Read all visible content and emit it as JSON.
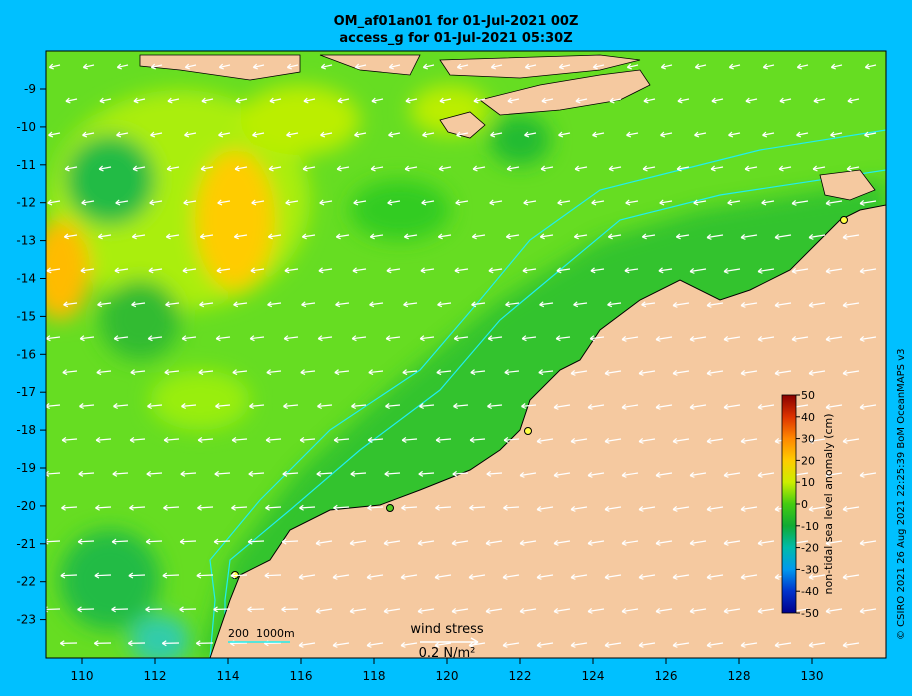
{
  "title_line1": "OM_af01an01 for 01-Jul-2021 00Z",
  "title_line2": "access_g for 01-Jul-2021 05:30Z",
  "x_ticks": [
    "110",
    "112",
    "114",
    "116",
    "118",
    "120",
    "122",
    "124",
    "126",
    "128",
    "130"
  ],
  "y_ticks": [
    "-9",
    "-10",
    "-11",
    "-12",
    "-13",
    "-14",
    "-15",
    "-16",
    "-17",
    "-18",
    "-19",
    "-20",
    "-21",
    "-22",
    "-23"
  ],
  "colorbar": {
    "label": "non-tidal sea level anomaly (cm)",
    "ticks": [
      "50",
      "40",
      "30",
      "20",
      "10",
      "0",
      "-10",
      "-20",
      "-30",
      "-40",
      "-50"
    ]
  },
  "depth_legend": {
    "label1": "200",
    "label2": "1000m"
  },
  "wind_legend": {
    "title": "wind stress",
    "value": "0.2 N/m²"
  },
  "copyright": "© CSIRO 2021  26 Aug 2021 22:25:39 BoM OceanMAPS v3",
  "colors": {
    "background": "#00c0ff",
    "land": "#f5c9a0",
    "ocean_base": "#66dd22"
  }
}
